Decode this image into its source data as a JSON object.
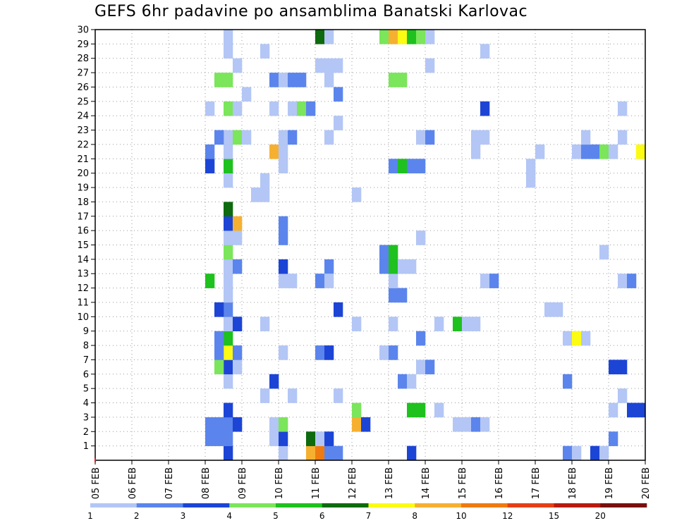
{
  "chart_data": {
    "type": "heatmap",
    "title": "GEFS 6hr padavine po ansamblima Banatski Karlovac",
    "x_labels": [
      "05 FEB",
      "06 FEB",
      "07 FEB",
      "08 FEB",
      "09 FEB",
      "10 FEB",
      "11 FEB",
      "12 FEB",
      "13 FEB",
      "14 FEB",
      "15 FEB",
      "16 FEB",
      "17 FEB",
      "18 FEB",
      "19 FEB",
      "20 FEB"
    ],
    "y_labels": [
      "1",
      "2",
      "3",
      "4",
      "5",
      "6",
      "7",
      "8",
      "9",
      "10",
      "11",
      "12",
      "13",
      "14",
      "15",
      "16",
      "17",
      "18",
      "19",
      "20",
      "21",
      "22",
      "23",
      "24",
      "25",
      "26",
      "27",
      "28",
      "29",
      "30"
    ],
    "x_range_days": [
      0,
      15
    ],
    "time_step_days": 0.25,
    "grid": true,
    "legend": {
      "position": "bottom",
      "labels": [
        "1",
        "2",
        "3",
        "4",
        "5",
        "6",
        "7",
        "8",
        "10",
        "12",
        "15",
        "20"
      ],
      "colors": [
        "#b3c6f5",
        "#5b85ec",
        "#1c45d6",
        "#7be55b",
        "#1ec11e",
        "#0e6a0e",
        "#fbfb14",
        "#f6b030",
        "#ef7b10",
        "#e54015",
        "#b81b10",
        "#7a0f0f"
      ]
    },
    "cells": [
      [
        3.5,
        1,
        3
      ],
      [
        3.5,
        2,
        2
      ],
      [
        3.5,
        3,
        2
      ],
      [
        3.5,
        4,
        3
      ],
      [
        3.5,
        6,
        1
      ],
      [
        3.5,
        7,
        3
      ],
      [
        3.5,
        8,
        7
      ],
      [
        3.5,
        9,
        5
      ],
      [
        3.5,
        10,
        1
      ],
      [
        3.5,
        11,
        2
      ],
      [
        3.5,
        12,
        1
      ],
      [
        3.5,
        13,
        1
      ],
      [
        3.5,
        14,
        1
      ],
      [
        3.5,
        15,
        4
      ],
      [
        3.5,
        16,
        1
      ],
      [
        3.5,
        17,
        3
      ],
      [
        3.5,
        18,
        6
      ],
      [
        3.5,
        20,
        1
      ],
      [
        3.5,
        21,
        5
      ],
      [
        3.5,
        22,
        1
      ],
      [
        3.5,
        23,
        1
      ],
      [
        3.5,
        25,
        4
      ],
      [
        3.5,
        27,
        4
      ],
      [
        3.5,
        29,
        1
      ],
      [
        3.5,
        30,
        1
      ],
      [
        3.25,
        2,
        2
      ],
      [
        3.25,
        3,
        2
      ],
      [
        3.25,
        7,
        4
      ],
      [
        3.25,
        8,
        2
      ],
      [
        3.25,
        9,
        2
      ],
      [
        3.25,
        11,
        3
      ],
      [
        3.25,
        23,
        2
      ],
      [
        3.25,
        27,
        4
      ],
      [
        3.0,
        2,
        2
      ],
      [
        3.0,
        3,
        2
      ],
      [
        3.0,
        13,
        5
      ],
      [
        3.0,
        21,
        3
      ],
      [
        3.0,
        22,
        2
      ],
      [
        3.0,
        25,
        1
      ],
      [
        3.75,
        3,
        3
      ],
      [
        3.75,
        7,
        1
      ],
      [
        3.75,
        8,
        2
      ],
      [
        3.75,
        10,
        3
      ],
      [
        3.75,
        14,
        2
      ],
      [
        3.75,
        16,
        1
      ],
      [
        3.75,
        17,
        8
      ],
      [
        3.75,
        23,
        4
      ],
      [
        3.75,
        25,
        1
      ],
      [
        3.75,
        28,
        1
      ],
      [
        4.0,
        23,
        1
      ],
      [
        4.0,
        26,
        1
      ],
      [
        4.5,
        5,
        1
      ],
      [
        4.5,
        10,
        1
      ],
      [
        4.5,
        19,
        1
      ],
      [
        4.5,
        20,
        1
      ],
      [
        4.5,
        29,
        1
      ],
      [
        4.25,
        19,
        1
      ],
      [
        4.75,
        2,
        1
      ],
      [
        4.75,
        3,
        1
      ],
      [
        4.75,
        6,
        3
      ],
      [
        4.75,
        22,
        8
      ],
      [
        4.75,
        25,
        1
      ],
      [
        4.75,
        27,
        2
      ],
      [
        5.0,
        1,
        1
      ],
      [
        5.0,
        2,
        3
      ],
      [
        5.0,
        3,
        4
      ],
      [
        5.0,
        8,
        1
      ],
      [
        5.0,
        13,
        1
      ],
      [
        5.0,
        14,
        3
      ],
      [
        5.0,
        16,
        2
      ],
      [
        5.0,
        17,
        2
      ],
      [
        5.0,
        21,
        1
      ],
      [
        5.0,
        22,
        1
      ],
      [
        5.0,
        23,
        1
      ],
      [
        5.0,
        27,
        1
      ],
      [
        5.25,
        13,
        1
      ],
      [
        5.25,
        23,
        2
      ],
      [
        5.25,
        25,
        1
      ],
      [
        5.25,
        27,
        2
      ],
      [
        5.25,
        5,
        1
      ],
      [
        5.5,
        25,
        4
      ],
      [
        5.5,
        27,
        2
      ],
      [
        5.75,
        1,
        8
      ],
      [
        5.75,
        2,
        6
      ],
      [
        5.75,
        25,
        2
      ],
      [
        6.0,
        1,
        9
      ],
      [
        6.0,
        2,
        1
      ],
      [
        6.0,
        8,
        2
      ],
      [
        6.0,
        13,
        2
      ],
      [
        6.0,
        28,
        1
      ],
      [
        6.0,
        30,
        6
      ],
      [
        6.25,
        1,
        2
      ],
      [
        6.25,
        2,
        3
      ],
      [
        6.25,
        8,
        3
      ],
      [
        6.25,
        14,
        2
      ],
      [
        6.25,
        13,
        1
      ],
      [
        6.25,
        27,
        1
      ],
      [
        6.25,
        28,
        1
      ],
      [
        6.25,
        23,
        1
      ],
      [
        6.25,
        30,
        1
      ],
      [
        6.5,
        1,
        2
      ],
      [
        6.5,
        26,
        2
      ],
      [
        6.5,
        28,
        1
      ],
      [
        6.5,
        11,
        3
      ],
      [
        6.5,
        5,
        1
      ],
      [
        6.5,
        24,
        1
      ],
      [
        7.0,
        3,
        8
      ],
      [
        7.0,
        4,
        4
      ],
      [
        7.0,
        10,
        1
      ],
      [
        7.0,
        19,
        1
      ],
      [
        7.25,
        3,
        3
      ],
      [
        7.75,
        8,
        1
      ],
      [
        7.75,
        14,
        2
      ],
      [
        7.75,
        15,
        2
      ],
      [
        7.75,
        30,
        4
      ],
      [
        8.0,
        8,
        2
      ],
      [
        8.0,
        10,
        1
      ],
      [
        8.0,
        12,
        2
      ],
      [
        8.0,
        13,
        1
      ],
      [
        8.0,
        14,
        5
      ],
      [
        8.0,
        15,
        5
      ],
      [
        8.0,
        21,
        2
      ],
      [
        8.0,
        27,
        4
      ],
      [
        8.0,
        30,
        8
      ],
      [
        8.25,
        6,
        2
      ],
      [
        8.25,
        12,
        2
      ],
      [
        8.25,
        14,
        1
      ],
      [
        8.25,
        21,
        5
      ],
      [
        8.25,
        27,
        4
      ],
      [
        8.25,
        30,
        7
      ],
      [
        8.5,
        1,
        3
      ],
      [
        8.5,
        4,
        5
      ],
      [
        8.5,
        6,
        1
      ],
      [
        8.5,
        14,
        1
      ],
      [
        8.5,
        21,
        2
      ],
      [
        8.5,
        30,
        5
      ],
      [
        8.75,
        4,
        5
      ],
      [
        8.75,
        7,
        1
      ],
      [
        8.75,
        9,
        2
      ],
      [
        8.75,
        16,
        1
      ],
      [
        8.75,
        21,
        2
      ],
      [
        8.75,
        23,
        1
      ],
      [
        8.75,
        30,
        4
      ],
      [
        9.0,
        7,
        2
      ],
      [
        9.0,
        23,
        2
      ],
      [
        9.0,
        28,
        1
      ],
      [
        9.0,
        30,
        1
      ],
      [
        9.25,
        4,
        1
      ],
      [
        9.25,
        10,
        1
      ],
      [
        9.75,
        3,
        1
      ],
      [
        9.75,
        10,
        5
      ],
      [
        10.0,
        3,
        1
      ],
      [
        10.0,
        10,
        1
      ],
      [
        10.25,
        3,
        2
      ],
      [
        10.25,
        10,
        1
      ],
      [
        10.25,
        23,
        1
      ],
      [
        10.25,
        22,
        1
      ],
      [
        10.5,
        3,
        1
      ],
      [
        10.5,
        13,
        1
      ],
      [
        10.5,
        23,
        1
      ],
      [
        10.5,
        25,
        3
      ],
      [
        10.5,
        29,
        1
      ],
      [
        10.75,
        13,
        2
      ],
      [
        11.75,
        21,
        1
      ],
      [
        11.75,
        20,
        1
      ],
      [
        12.0,
        22,
        1
      ],
      [
        12.25,
        11,
        1
      ],
      [
        12.5,
        11,
        1
      ],
      [
        12.75,
        9,
        1
      ],
      [
        12.75,
        1,
        2
      ],
      [
        12.75,
        6,
        2
      ],
      [
        13.0,
        1,
        1
      ],
      [
        13.0,
        9,
        7
      ],
      [
        13.0,
        22,
        1
      ],
      [
        13.25,
        9,
        1
      ],
      [
        13.25,
        22,
        2
      ],
      [
        13.25,
        23,
        1
      ],
      [
        13.5,
        1,
        3
      ],
      [
        13.5,
        22,
        2
      ],
      [
        13.75,
        1,
        1
      ],
      [
        13.75,
        15,
        1
      ],
      [
        13.75,
        22,
        4
      ],
      [
        14.0,
        2,
        2
      ],
      [
        14.0,
        4,
        1
      ],
      [
        14.0,
        7,
        3
      ],
      [
        14.0,
        22,
        1
      ],
      [
        14.25,
        5,
        1
      ],
      [
        14.25,
        7,
        3
      ],
      [
        14.25,
        13,
        1
      ],
      [
        14.25,
        23,
        1
      ],
      [
        14.25,
        25,
        1
      ],
      [
        14.5,
        4,
        3
      ],
      [
        14.5,
        13,
        2
      ],
      [
        14.75,
        4,
        3
      ],
      [
        14.75,
        22,
        7
      ]
    ]
  }
}
